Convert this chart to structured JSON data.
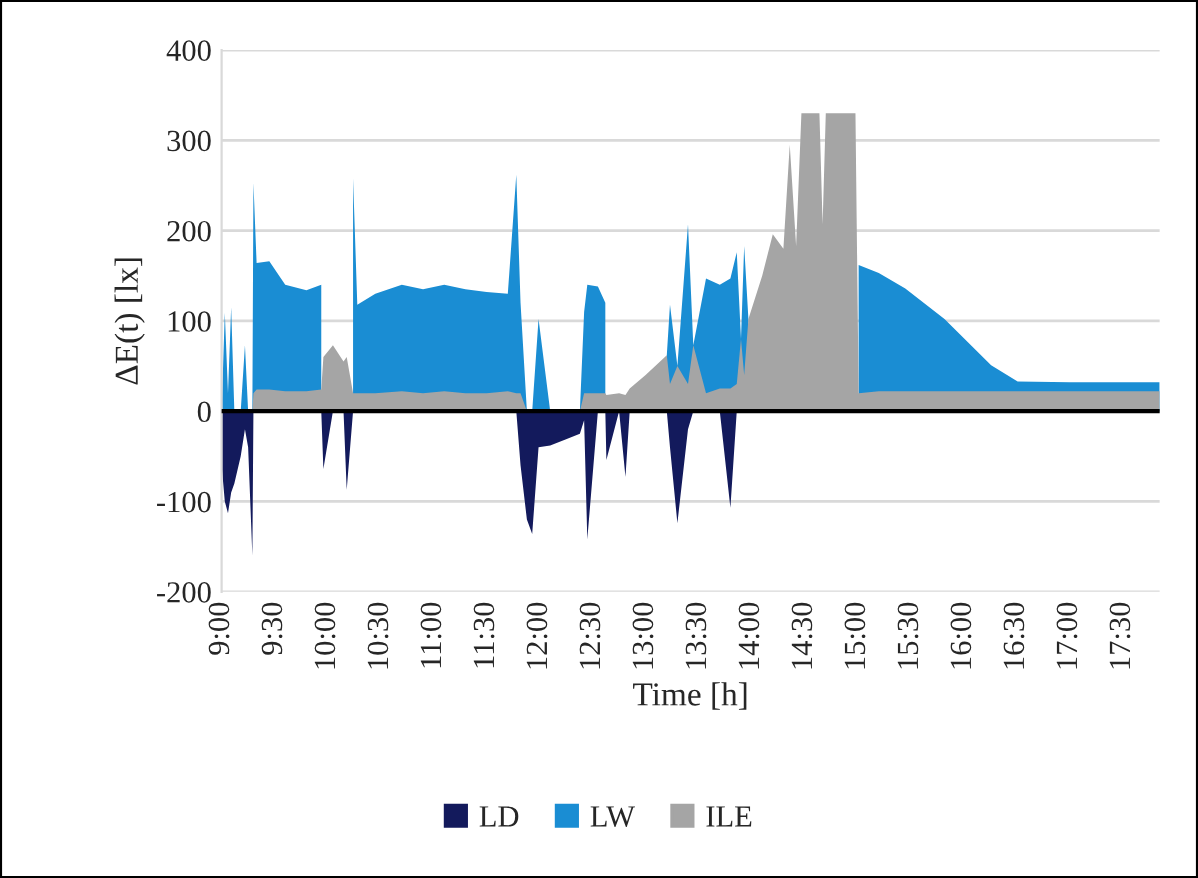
{
  "chart_data": {
    "type": "area",
    "ylabel": "ΔE(t) [lx]",
    "xlabel": "Time [h]",
    "x": [
      9.0,
      9.03,
      9.06,
      9.09,
      9.12,
      9.18,
      9.22,
      9.25,
      9.29,
      9.3,
      9.33,
      9.45,
      9.6,
      9.8,
      9.94,
      9.96,
      10.05,
      10.15,
      10.18,
      10.24,
      10.28,
      10.45,
      10.7,
      10.9,
      11.1,
      11.3,
      11.5,
      11.7,
      11.78,
      11.82,
      11.88,
      11.93,
      11.99,
      12.1,
      12.25,
      12.38,
      12.42,
      12.45,
      12.55,
      12.62,
      12.63,
      12.75,
      12.81,
      12.85,
      13.0,
      13.2,
      13.23,
      13.3,
      13.4,
      13.45,
      13.57,
      13.7,
      13.8,
      13.86,
      13.9,
      13.93,
      13.97,
      14.1,
      14.2,
      14.3,
      14.36,
      14.42,
      14.47,
      14.64,
      14.67,
      14.7,
      14.98,
      15.01,
      15.2,
      15.45,
      15.82,
      16.26,
      16.51,
      17.0,
      17.85
    ],
    "series": [
      {
        "name": "LD",
        "color": "#131a5c",
        "values": [
          -60,
          -100,
          -113,
          -90,
          -80,
          -50,
          -20,
          -40,
          -160,
          0,
          0,
          0,
          0,
          0,
          0,
          -64,
          0,
          0,
          -87,
          0,
          0,
          0,
          0,
          0,
          0,
          0,
          0,
          0,
          0,
          -60,
          -120,
          -136,
          -40,
          -38,
          -31,
          -25,
          -10,
          -142,
          0,
          0,
          -54,
          0,
          -73,
          0,
          0,
          0,
          -40,
          -124,
          -20,
          0,
          0,
          0,
          -107,
          0,
          0,
          0,
          0,
          0,
          0,
          0,
          0,
          0,
          0,
          0,
          0,
          0,
          0,
          0,
          0,
          0,
          0,
          0,
          0,
          0,
          0
        ]
      },
      {
        "name": "LW",
        "color": "#1a8dd3",
        "values": [
          0,
          109,
          20,
          115,
          0,
          0,
          73,
          0,
          0,
          253,
          164,
          166,
          140,
          134,
          140,
          null,
          null,
          null,
          null,
          258,
          118,
          130,
          140,
          135,
          140,
          135,
          132,
          130,
          262,
          120,
          0,
          0,
          102,
          0,
          0,
          0,
          110,
          140,
          138,
          120,
          null,
          null,
          null,
          null,
          null,
          62,
          118,
          50,
          207,
          73,
          147,
          140,
          147,
          176,
          80,
          183,
          102,
          null,
          null,
          null,
          null,
          null,
          null,
          null,
          null,
          null,
          null,
          162,
          153,
          136,
          102,
          51,
          33,
          32,
          32
        ]
      },
      {
        "name": "ILE",
        "color": "#a5a5a5",
        "values": [
          0,
          0,
          0,
          0,
          0,
          0,
          0,
          0,
          0,
          20,
          24,
          24,
          22,
          22,
          24,
          60,
          73,
          55,
          60,
          20,
          20,
          20,
          22,
          20,
          22,
          20,
          20,
          22,
          20,
          20,
          0,
          0,
          0,
          0,
          0,
          0,
          20,
          20,
          20,
          20,
          18,
          20,
          18,
          25,
          40,
          62,
          30,
          50,
          30,
          73,
          20,
          25,
          25,
          30,
          80,
          40,
          102,
          150,
          196,
          180,
          295,
          183,
          330,
          330,
          207,
          330,
          330,
          20,
          22,
          22,
          22,
          22,
          22,
          22,
          22
        ]
      }
    ],
    "xlim": [
      9.0,
      17.85
    ],
    "xticks": [
      {
        "value": 9,
        "label": "9:00"
      },
      {
        "value": 9.5,
        "label": "9:30"
      },
      {
        "value": 10,
        "label": "10:00"
      },
      {
        "value": 10.5,
        "label": "10:30"
      },
      {
        "value": 11,
        "label": "11:00"
      },
      {
        "value": 11.5,
        "label": "11:30"
      },
      {
        "value": 12,
        "label": "12:00"
      },
      {
        "value": 12.5,
        "label": "12:30"
      },
      {
        "value": 13,
        "label": "13:00"
      },
      {
        "value": 13.5,
        "label": "13:30"
      },
      {
        "value": 14,
        "label": "14:00"
      },
      {
        "value": 14.5,
        "label": "14:30"
      },
      {
        "value": 15,
        "label": "15:00"
      },
      {
        "value": 15.5,
        "label": "15:30"
      },
      {
        "value": 16,
        "label": "16:00"
      },
      {
        "value": 16.5,
        "label": "16:30"
      },
      {
        "value": 17,
        "label": "17:00"
      },
      {
        "value": 17.5,
        "label": "17:30"
      }
    ],
    "ylim": [
      -200,
      400
    ],
    "yticks": [
      -200,
      -100,
      0,
      100,
      200,
      300,
      400
    ],
    "grid": "y",
    "legend": "bottom"
  }
}
